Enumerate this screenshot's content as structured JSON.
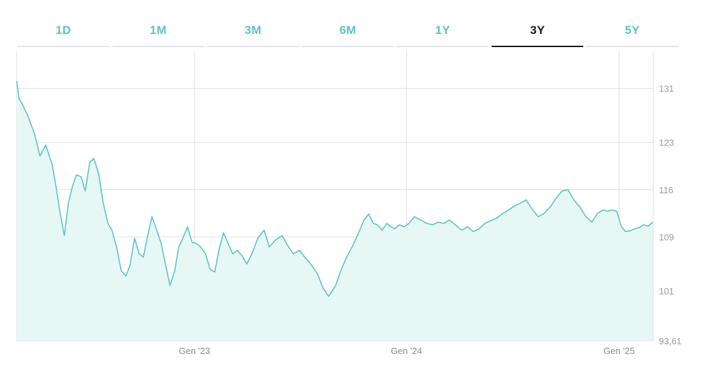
{
  "tabs": [
    {
      "label": "1D",
      "active": false
    },
    {
      "label": "1M",
      "active": false
    },
    {
      "label": "3M",
      "active": false
    },
    {
      "label": "6M",
      "active": false
    },
    {
      "label": "1Y",
      "active": false
    },
    {
      "label": "3Y",
      "active": true
    },
    {
      "label": "5Y",
      "active": false
    }
  ],
  "colors": {
    "line": "#5cc4c0",
    "fill": "#e6f7f6",
    "grid": "#dcdfe1",
    "tab_inactive": "#5cc4c0",
    "tab_active": "#1a1a1a"
  },
  "chart_data": {
    "type": "area",
    "title": "",
    "xlabel": "",
    "ylabel": "",
    "ylim": [
      93.61,
      136.5
    ],
    "y_ticks": [
      {
        "value": 131,
        "label": "131"
      },
      {
        "value": 123,
        "label": "123"
      },
      {
        "value": 116,
        "label": "116"
      },
      {
        "value": 109,
        "label": "109"
      },
      {
        "value": 101,
        "label": "101"
      },
      {
        "value": 93.61,
        "label": "93,61"
      }
    ],
    "x_range": [
      "2022-03-01",
      "2025-03-01"
    ],
    "x_ticks": [
      {
        "date": "2023-01-01",
        "label": "Gen '23"
      },
      {
        "date": "2024-01-01",
        "label": "Gen '24"
      },
      {
        "date": "2025-01-01",
        "label": "Gen '25"
      }
    ],
    "grid": true,
    "series": [
      {
        "x": [
          "2022-03-01",
          "2022-03-05",
          "2022-03-10",
          "2022-03-20",
          "2022-04-01",
          "2022-04-10",
          "2022-04-20",
          "2022-05-01",
          "2022-05-08",
          "2022-05-15",
          "2022-05-22",
          "2022-05-29",
          "2022-06-05",
          "2022-06-12",
          "2022-06-20",
          "2022-06-27",
          "2022-07-05",
          "2022-07-12",
          "2022-07-20",
          "2022-07-28",
          "2022-08-05",
          "2022-08-12",
          "2022-08-20",
          "2022-08-28",
          "2022-09-05",
          "2022-09-12",
          "2022-09-20",
          "2022-09-28",
          "2022-10-05",
          "2022-10-12",
          "2022-10-20",
          "2022-10-28",
          "2022-11-05",
          "2022-11-12",
          "2022-11-20",
          "2022-11-28",
          "2022-12-05",
          "2022-12-12",
          "2022-12-20",
          "2022-12-28",
          "2023-01-05",
          "2023-01-12",
          "2023-01-20",
          "2023-01-28",
          "2023-02-05",
          "2023-02-12",
          "2023-02-20",
          "2023-02-28",
          "2023-03-08",
          "2023-03-16",
          "2023-03-24",
          "2023-04-01",
          "2023-04-10",
          "2023-04-20",
          "2023-05-01",
          "2023-05-10",
          "2023-05-20",
          "2023-06-01",
          "2023-06-10",
          "2023-06-20",
          "2023-07-01",
          "2023-07-10",
          "2023-07-20",
          "2023-08-01",
          "2023-08-10",
          "2023-08-20",
          "2023-09-01",
          "2023-09-10",
          "2023-09-20",
          "2023-10-01",
          "2023-10-10",
          "2023-10-20",
          "2023-10-28",
          "2023-11-05",
          "2023-11-12",
          "2023-11-20",
          "2023-11-28",
          "2023-12-05",
          "2023-12-12",
          "2023-12-20",
          "2023-12-28",
          "2024-01-05",
          "2024-01-15",
          "2024-01-25",
          "2024-02-05",
          "2024-02-15",
          "2024-02-25",
          "2024-03-05",
          "2024-03-15",
          "2024-03-25",
          "2024-04-05",
          "2024-04-15",
          "2024-04-25",
          "2024-05-05",
          "2024-05-15",
          "2024-05-25",
          "2024-06-05",
          "2024-06-15",
          "2024-06-25",
          "2024-07-05",
          "2024-07-15",
          "2024-07-25",
          "2024-08-05",
          "2024-08-15",
          "2024-08-25",
          "2024-09-05",
          "2024-09-15",
          "2024-09-25",
          "2024-10-05",
          "2024-10-15",
          "2024-10-25",
          "2024-11-05",
          "2024-11-15",
          "2024-11-25",
          "2024-12-05",
          "2024-12-12",
          "2024-12-20",
          "2024-12-28",
          "2025-01-05",
          "2025-01-12",
          "2025-01-20",
          "2025-01-28",
          "2025-02-05",
          "2025-02-12",
          "2025-02-20",
          "2025-02-28"
        ],
        "values": [
          132.1,
          129.5,
          128.8,
          127.0,
          124.2,
          121.0,
          122.6,
          119.8,
          116.3,
          112.4,
          109.2,
          114.0,
          116.5,
          118.2,
          117.9,
          115.8,
          120.1,
          120.6,
          118.4,
          114.0,
          111.0,
          110.0,
          107.5,
          104.0,
          103.2,
          104.8,
          108.8,
          106.5,
          106.0,
          109.0,
          112.0,
          110.0,
          108.0,
          105.0,
          101.8,
          104.0,
          107.5,
          108.8,
          110.5,
          108.2,
          108.0,
          107.5,
          106.5,
          104.2,
          103.8,
          107.0,
          109.6,
          108.0,
          106.5,
          107.0,
          106.2,
          105.0,
          106.5,
          108.8,
          110.0,
          107.5,
          108.5,
          109.2,
          107.8,
          106.5,
          107.0,
          106.0,
          105.0,
          103.5,
          101.5,
          100.2,
          101.8,
          104.0,
          106.0,
          107.8,
          109.5,
          111.5,
          112.4,
          111.0,
          110.8,
          110.0,
          111.0,
          110.5,
          110.2,
          110.8,
          110.5,
          111.0,
          112.0,
          111.5,
          111.0,
          110.8,
          111.2,
          111.0,
          111.5,
          110.8,
          110.0,
          110.5,
          109.8,
          110.2,
          111.0,
          111.4,
          111.8,
          112.5,
          113.0,
          113.6,
          114.0,
          114.5,
          113.0,
          112.0,
          112.5,
          113.5,
          114.8,
          115.8,
          116.0,
          114.5,
          113.5,
          112.0,
          111.2,
          112.5,
          113.0,
          112.8,
          113.0,
          112.8,
          110.5,
          109.8,
          109.9,
          110.2,
          110.4,
          110.8,
          110.6,
          111.2
        ]
      }
    ]
  }
}
